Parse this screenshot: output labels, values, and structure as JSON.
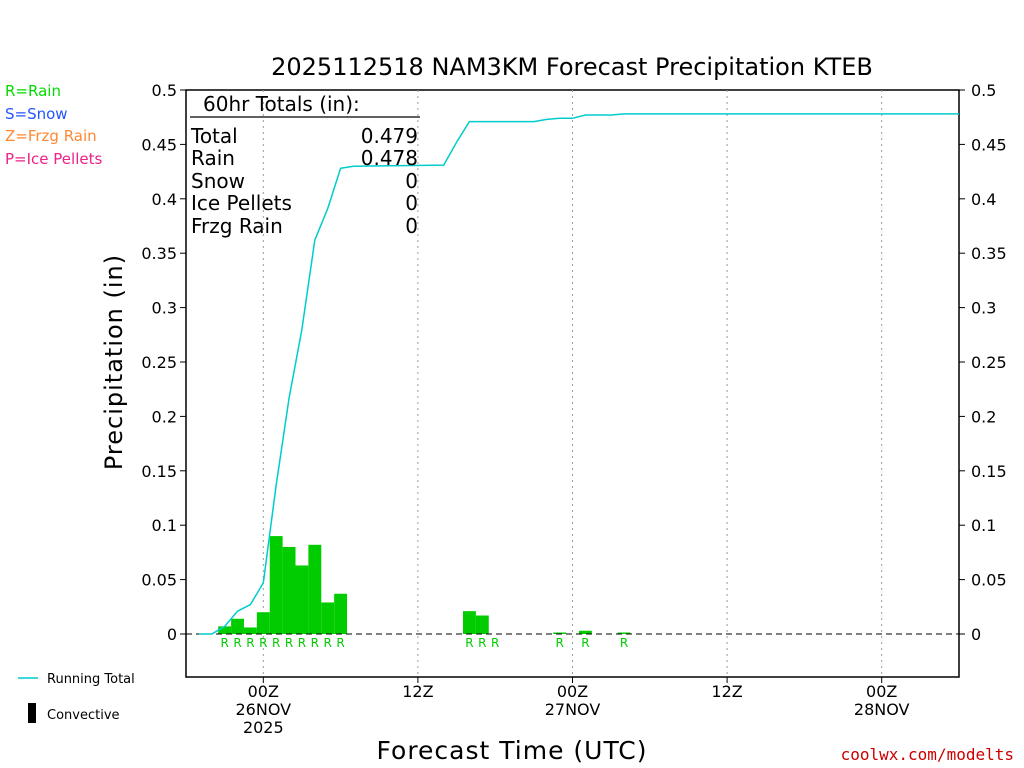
{
  "chart_data": {
    "type": "bar",
    "title": "2025112518 NAM3KM Forecast Precipitation KTEB",
    "xlabel": "Forecast Time (UTC)",
    "ylabel": "Precipitation (in)",
    "ylim": [
      -0.04,
      0.5
    ],
    "y_ticks": [
      "0.5",
      "0.45",
      "0.4",
      "0.35",
      "0.3",
      "0.25",
      "0.2",
      "0.15",
      "0.1",
      "0.05",
      "0"
    ],
    "y_tick_values": [
      0.5,
      0.45,
      0.4,
      0.35,
      0.3,
      0.25,
      0.2,
      0.15,
      0.1,
      0.05,
      0
    ],
    "x_unit": "hours after 00Z 26NOV",
    "xlim": [
      -6,
      54
    ],
    "x_ticks": [
      {
        "hour": 0,
        "line1": "00Z",
        "line2": "26NOV",
        "line3": "2025"
      },
      {
        "hour": 12,
        "line1": "12Z",
        "line2": "",
        "line3": ""
      },
      {
        "hour": 24,
        "line1": "00Z",
        "line2": "27NOV",
        "line3": ""
      },
      {
        "hour": 36,
        "line1": "12Z",
        "line2": "",
        "line3": ""
      },
      {
        "hour": 48,
        "line1": "00Z",
        "line2": "28NOV",
        "line3": ""
      }
    ],
    "hourly_precip": [
      {
        "hour": -3,
        "value": 0.007,
        "ptype": "R"
      },
      {
        "hour": -2,
        "value": 0.014,
        "ptype": "R"
      },
      {
        "hour": -1,
        "value": 0.006,
        "ptype": "R"
      },
      {
        "hour": 0,
        "value": 0.02,
        "ptype": "R"
      },
      {
        "hour": 1,
        "value": 0.09,
        "ptype": "R"
      },
      {
        "hour": 2,
        "value": 0.08,
        "ptype": "R"
      },
      {
        "hour": 3,
        "value": 0.063,
        "ptype": "R"
      },
      {
        "hour": 4,
        "value": 0.082,
        "ptype": "R"
      },
      {
        "hour": 5,
        "value": 0.029,
        "ptype": "R"
      },
      {
        "hour": 6,
        "value": 0.037,
        "ptype": "R"
      },
      {
        "hour": 16,
        "value": 0.021,
        "ptype": "R"
      },
      {
        "hour": 17,
        "value": 0.017,
        "ptype": "R"
      },
      {
        "hour": 18,
        "value": 0.0,
        "ptype": "R"
      },
      {
        "hour": 23,
        "value": 0.001,
        "ptype": "R"
      },
      {
        "hour": 25,
        "value": 0.003,
        "ptype": "R"
      },
      {
        "hour": 28,
        "value": 0.001,
        "ptype": "R"
      }
    ],
    "running_total": {
      "name": "Running Total",
      "x": [
        -5,
        -4,
        -3,
        -2,
        -1,
        0,
        1,
        2,
        3,
        4,
        5,
        6,
        7,
        14,
        15,
        16,
        17,
        18,
        19,
        20,
        21,
        22,
        23,
        24,
        25,
        26,
        27,
        28,
        54
      ],
      "y": [
        0,
        0,
        0.007,
        0.021,
        0.027,
        0.047,
        0.137,
        0.217,
        0.28,
        0.362,
        0.391,
        0.428,
        0.43,
        0.431,
        0.452,
        0.471,
        0.471,
        0.471,
        0.471,
        0.471,
        0.471,
        0.473,
        0.474,
        0.474,
        0.477,
        0.477,
        0.477,
        0.478,
        0.478
      ]
    },
    "legend": {
      "ptypes": [
        {
          "label": "R=Rain",
          "color": "#00dd00"
        },
        {
          "label": "S=Snow",
          "color": "#2255ff"
        },
        {
          "label": "Z=Frzg Rain",
          "color": "#ff8833"
        },
        {
          "label": "P=Ice Pellets",
          "color": "#ee2288"
        }
      ],
      "running_total_label": "Running Total",
      "convective_label": "Convective"
    },
    "totals_box": {
      "header": "60hr Totals (in):",
      "rows": [
        {
          "label": "Total",
          "value": "0.479"
        },
        {
          "label": "Rain",
          "value": "0.478"
        },
        {
          "label": "Snow",
          "value": "0"
        },
        {
          "label": "Ice Pellets",
          "value": "0"
        },
        {
          "label": "Frzg Rain",
          "value": "0"
        }
      ]
    },
    "credit": "coolwx.com/modelts"
  },
  "colors": {
    "bar": "#00cc00",
    "running_total": "#00cccc",
    "grid": "#999999",
    "credit": "#cc0000"
  }
}
